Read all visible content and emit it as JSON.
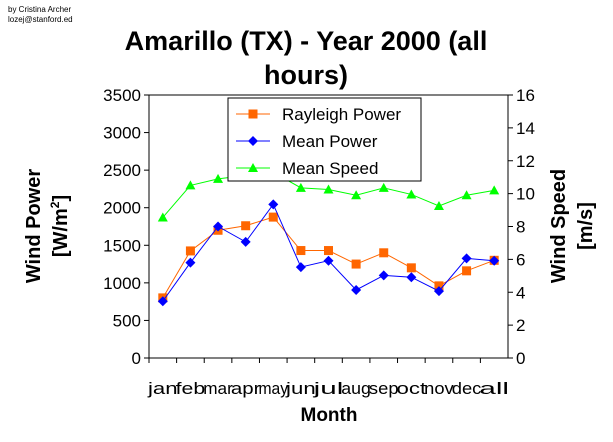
{
  "credit": {
    "author": "by Cristina Archer",
    "email": "lozej@stanford.ed"
  },
  "chart_data": {
    "type": "line",
    "title_line1": "Amarillo (TX) - Year 2000 (all",
    "title_line2": "hours)",
    "xlabel": "Month",
    "ylabel_line1": "Wind Power",
    "ylabel_line2": "[W/m",
    "ylabel_sup": "2",
    "ylabel_end": "]",
    "y2label_line1": "Wind Speed",
    "y2label_line2": "[m/s]",
    "categories": [
      "jan",
      "feb",
      "mar",
      "apr",
      "may",
      "jun",
      "jul",
      "aug",
      "sep",
      "oct",
      "nov",
      "dec",
      "all"
    ],
    "ylim": [
      0,
      3500
    ],
    "yticks": [
      "0",
      "500",
      "1000",
      "1500",
      "2000",
      "2500",
      "3000",
      "3500"
    ],
    "y2lim": [
      0,
      16
    ],
    "y2ticks": [
      "0",
      "2",
      "4",
      "6",
      "8",
      "10",
      "12",
      "14",
      "16"
    ],
    "legend_position": "top-center",
    "series": [
      {
        "name": "Rayleigh Power",
        "axis": "left",
        "color": "#ff6600",
        "marker": "square",
        "values": [
          800,
          1425,
          1700,
          1760,
          1875,
          1430,
          1430,
          1250,
          1400,
          1200,
          960,
          1160,
          1300
        ]
      },
      {
        "name": "Mean Power",
        "axis": "left",
        "color": "#0000ff",
        "marker": "diamond",
        "values": [
          755,
          1270,
          1750,
          1545,
          2045,
          1210,
          1295,
          905,
          1100,
          1075,
          890,
          1325,
          1295
        ]
      },
      {
        "name": "Mean Speed",
        "axis": "right",
        "color": "#00ff00",
        "marker": "triangle",
        "values": [
          8.55,
          10.5,
          10.9,
          11.1,
          11.3,
          10.35,
          10.25,
          9.9,
          10.35,
          9.95,
          9.25,
          9.9,
          10.2
        ]
      }
    ]
  }
}
